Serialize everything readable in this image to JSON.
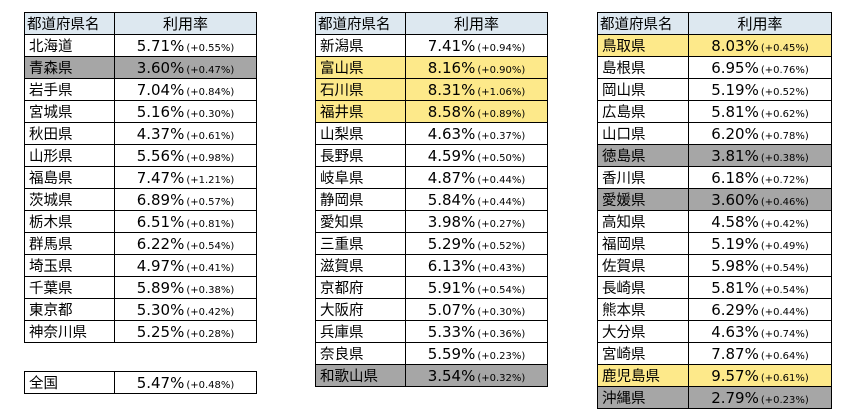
{
  "headers": {
    "pref": "都道府県名",
    "rate": "利用率"
  },
  "table1": [
    {
      "name": "北海道",
      "rate": "5.71%",
      "delta": "(+0.55%)",
      "hl": ""
    },
    {
      "name": "青森県",
      "rate": "3.60%",
      "delta": "(+0.47%)",
      "hl": "gray"
    },
    {
      "name": "岩手県",
      "rate": "7.04%",
      "delta": "(+0.84%)",
      "hl": ""
    },
    {
      "name": "宮城県",
      "rate": "5.16%",
      "delta": "(+0.30%)",
      "hl": ""
    },
    {
      "name": "秋田県",
      "rate": "4.37%",
      "delta": "(+0.61%)",
      "hl": ""
    },
    {
      "name": "山形県",
      "rate": "5.56%",
      "delta": "(+0.98%)",
      "hl": ""
    },
    {
      "name": "福島県",
      "rate": "7.47%",
      "delta": "(+1.21%)",
      "hl": ""
    },
    {
      "name": "茨城県",
      "rate": "6.89%",
      "delta": "(+0.57%)",
      "hl": ""
    },
    {
      "name": "栃木県",
      "rate": "6.51%",
      "delta": "(+0.81%)",
      "hl": ""
    },
    {
      "name": "群馬県",
      "rate": "6.22%",
      "delta": "(+0.54%)",
      "hl": ""
    },
    {
      "name": "埼玉県",
      "rate": "4.97%",
      "delta": "(+0.41%)",
      "hl": ""
    },
    {
      "name": "千葉県",
      "rate": "5.89%",
      "delta": "(+0.38%)",
      "hl": ""
    },
    {
      "name": "東京都",
      "rate": "5.30%",
      "delta": "(+0.42%)",
      "hl": ""
    },
    {
      "name": "神奈川県",
      "rate": "5.25%",
      "delta": "(+0.28%)",
      "hl": ""
    }
  ],
  "table2": [
    {
      "name": "新潟県",
      "rate": "7.41%",
      "delta": "(+0.94%)",
      "hl": ""
    },
    {
      "name": "富山県",
      "rate": "8.16%",
      "delta": "(+0.90%)",
      "hl": "yellow"
    },
    {
      "name": "石川県",
      "rate": "8.31%",
      "delta": "(+1.06%)",
      "hl": "yellow"
    },
    {
      "name": "福井県",
      "rate": "8.58%",
      "delta": "(+0.89%)",
      "hl": "yellow"
    },
    {
      "name": "山梨県",
      "rate": "4.63%",
      "delta": "(+0.37%)",
      "hl": ""
    },
    {
      "name": "長野県",
      "rate": "4.59%",
      "delta": "(+0.50%)",
      "hl": ""
    },
    {
      "name": "岐阜県",
      "rate": "4.87%",
      "delta": "(+0.44%)",
      "hl": ""
    },
    {
      "name": "静岡県",
      "rate": "5.84%",
      "delta": "(+0.44%)",
      "hl": ""
    },
    {
      "name": "愛知県",
      "rate": "3.98%",
      "delta": "(+0.27%)",
      "hl": ""
    },
    {
      "name": "三重県",
      "rate": "5.29%",
      "delta": "(+0.52%)",
      "hl": ""
    },
    {
      "name": "滋賀県",
      "rate": "6.13%",
      "delta": "(+0.43%)",
      "hl": ""
    },
    {
      "name": "京都府",
      "rate": "5.91%",
      "delta": "(+0.54%)",
      "hl": ""
    },
    {
      "name": "大阪府",
      "rate": "5.07%",
      "delta": "(+0.30%)",
      "hl": ""
    },
    {
      "name": "兵庫県",
      "rate": "5.33%",
      "delta": "(+0.36%)",
      "hl": ""
    },
    {
      "name": "奈良県",
      "rate": "5.59%",
      "delta": "(+0.23%)",
      "hl": ""
    },
    {
      "name": "和歌山県",
      "rate": "3.54%",
      "delta": "(+0.32%)",
      "hl": "gray"
    }
  ],
  "table3": [
    {
      "name": "鳥取県",
      "rate": "8.03%",
      "delta": "(+0.45%)",
      "hl": "yellow"
    },
    {
      "name": "島根県",
      "rate": "6.95%",
      "delta": "(+0.76%)",
      "hl": ""
    },
    {
      "name": "岡山県",
      "rate": "5.19%",
      "delta": "(+0.52%)",
      "hl": ""
    },
    {
      "name": "広島県",
      "rate": "5.81%",
      "delta": "(+0.62%)",
      "hl": ""
    },
    {
      "name": "山口県",
      "rate": "6.20%",
      "delta": "(+0.78%)",
      "hl": ""
    },
    {
      "name": "徳島県",
      "rate": "3.81%",
      "delta": "(+0.38%)",
      "hl": "gray"
    },
    {
      "name": "香川県",
      "rate": "6.18%",
      "delta": "(+0.72%)",
      "hl": ""
    },
    {
      "name": "愛媛県",
      "rate": "3.60%",
      "delta": "(+0.46%)",
      "hl": "gray"
    },
    {
      "name": "高知県",
      "rate": "4.58%",
      "delta": "(+0.42%)",
      "hl": ""
    },
    {
      "name": "福岡県",
      "rate": "5.19%",
      "delta": "(+0.49%)",
      "hl": ""
    },
    {
      "name": "佐賀県",
      "rate": "5.98%",
      "delta": "(+0.54%)",
      "hl": ""
    },
    {
      "name": "長崎県",
      "rate": "5.81%",
      "delta": "(+0.54%)",
      "hl": ""
    },
    {
      "name": "熊本県",
      "rate": "6.29%",
      "delta": "(+0.44%)",
      "hl": ""
    },
    {
      "name": "大分県",
      "rate": "4.63%",
      "delta": "(+0.74%)",
      "hl": ""
    },
    {
      "name": "宮崎県",
      "rate": "7.87%",
      "delta": "(+0.64%)",
      "hl": ""
    },
    {
      "name": "鹿児島県",
      "rate": "9.57%",
      "delta": "(+0.61%)",
      "hl": "yellow"
    },
    {
      "name": "沖縄県",
      "rate": "2.79%",
      "delta": "(+0.23%)",
      "hl": "gray"
    }
  ],
  "national": {
    "name": "全国",
    "rate": "5.47%",
    "delta": "(+0.48%)"
  },
  "colors": {
    "header_bg": "#dde8f0",
    "highlight_yellow": "#fde98a",
    "highlight_gray": "#a6a6a6"
  }
}
